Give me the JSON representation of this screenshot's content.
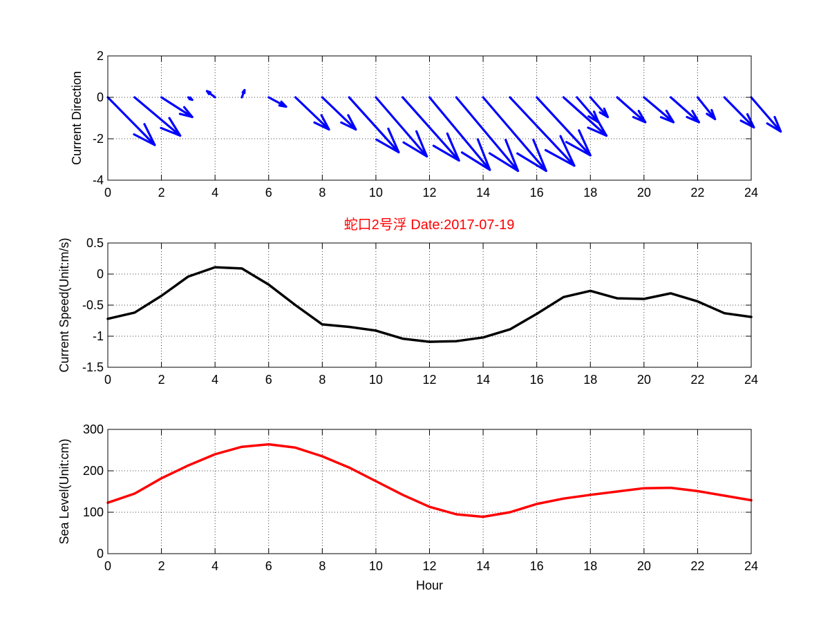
{
  "figure": {
    "title": "蛇口2号浮   Date:2017-07-19",
    "title_color": "#ff0000"
  },
  "chart_data": [
    {
      "type": "quiver",
      "ylabel": "Current Direction",
      "xlabel": "",
      "xlim": [
        0,
        24
      ],
      "ylim": [
        -4,
        2
      ],
      "xticks": [
        0,
        2,
        4,
        6,
        8,
        10,
        12,
        14,
        16,
        18,
        20,
        22,
        24
      ],
      "yticks": [
        -4,
        -2,
        0,
        2
      ],
      "grid": true,
      "color": "#0000ff",
      "arrows": [
        {
          "x": 0,
          "y": 0,
          "u": 1.75,
          "v": -2.3
        },
        {
          "x": 1,
          "y": 0,
          "u": 1.7,
          "v": -1.85
        },
        {
          "x": 2,
          "y": 0,
          "u": 1.15,
          "v": -0.95
        },
        {
          "x": 3,
          "y": 0,
          "u": 0.15,
          "v": -0.12
        },
        {
          "x": 4,
          "y": 0,
          "u": -0.3,
          "v": 0.3
        },
        {
          "x": 5,
          "y": 0,
          "u": 0.1,
          "v": 0.35
        },
        {
          "x": 6,
          "y": 0,
          "u": 0.65,
          "v": -0.45
        },
        {
          "x": 7,
          "y": 0,
          "u": 1.25,
          "v": -1.55
        },
        {
          "x": 8,
          "y": 0,
          "u": 1.25,
          "v": -1.55
        },
        {
          "x": 9,
          "y": 0,
          "u": 1.85,
          "v": -2.65
        },
        {
          "x": 10,
          "y": 0,
          "u": 1.9,
          "v": -2.85
        },
        {
          "x": 11,
          "y": 0,
          "u": 2.1,
          "v": -3.05
        },
        {
          "x": 12,
          "y": 0,
          "u": 2.25,
          "v": -3.5
        },
        {
          "x": 13,
          "y": 0,
          "u": 2.3,
          "v": -3.55
        },
        {
          "x": 14,
          "y": 0,
          "u": 2.35,
          "v": -3.55
        },
        {
          "x": 15,
          "y": 0,
          "u": 2.4,
          "v": -3.3
        },
        {
          "x": 16,
          "y": 0,
          "u": 2.0,
          "v": -2.8
        },
        {
          "x": 17,
          "y": 0,
          "u": 1.6,
          "v": -1.85
        },
        {
          "x": 17.5,
          "y": 0,
          "u": 0.8,
          "v": -1.2
        },
        {
          "x": 18,
          "y": 0,
          "u": 0.65,
          "v": -0.95
        },
        {
          "x": 19,
          "y": 0,
          "u": 1.05,
          "v": -1.2
        },
        {
          "x": 20,
          "y": 0,
          "u": 1.1,
          "v": -1.2
        },
        {
          "x": 21,
          "y": 0,
          "u": 1.05,
          "v": -1.2
        },
        {
          "x": 22,
          "y": 0,
          "u": 0.65,
          "v": -1.05
        },
        {
          "x": 23,
          "y": 0,
          "u": 1.1,
          "v": -1.45
        },
        {
          "x": 24,
          "y": 0,
          "u": 1.1,
          "v": -1.65
        }
      ]
    },
    {
      "type": "line",
      "ylabel": "Current Speed(Unit:m/s)",
      "xlabel": "",
      "xlim": [
        0,
        24
      ],
      "ylim": [
        -1.5,
        0.5
      ],
      "xticks": [
        0,
        2,
        4,
        6,
        8,
        10,
        12,
        14,
        16,
        18,
        20,
        22,
        24
      ],
      "yticks": [
        -1.5,
        -1,
        -0.5,
        0,
        0.5
      ],
      "grid": true,
      "color": "#000000",
      "x": [
        0,
        1,
        2,
        3,
        4,
        5,
        6,
        7,
        8,
        9,
        10,
        11,
        12,
        13,
        14,
        15,
        16,
        17,
        18,
        19,
        20,
        21,
        22,
        23,
        24
      ],
      "y": [
        -0.72,
        -0.62,
        -0.35,
        -0.04,
        0.11,
        0.09,
        -0.17,
        -0.5,
        -0.81,
        -0.85,
        -0.91,
        -1.04,
        -1.09,
        -1.08,
        -1.02,
        -0.89,
        -0.64,
        -0.37,
        -0.27,
        -0.39,
        -0.4,
        -0.31,
        -0.44,
        -0.63,
        -0.69
      ]
    },
    {
      "type": "line",
      "ylabel": "Sea Level(Unit:cm)",
      "xlabel": "Hour",
      "xlim": [
        0,
        24
      ],
      "ylim": [
        0,
        300
      ],
      "xticks": [
        0,
        2,
        4,
        6,
        8,
        10,
        12,
        14,
        16,
        18,
        20,
        22,
        24
      ],
      "yticks": [
        0,
        100,
        200,
        300
      ],
      "grid": true,
      "color": "#ff0000",
      "x": [
        0,
        1,
        2,
        3,
        4,
        5,
        6,
        7,
        8,
        9,
        10,
        11,
        12,
        13,
        14,
        15,
        16,
        17,
        18,
        19,
        20,
        21,
        22,
        23,
        24
      ],
      "y": [
        123,
        145,
        182,
        213,
        240,
        258,
        264,
        256,
        235,
        208,
        175,
        142,
        113,
        95,
        89,
        100,
        120,
        133,
        142,
        150,
        158,
        159,
        151,
        140,
        129
      ]
    }
  ]
}
